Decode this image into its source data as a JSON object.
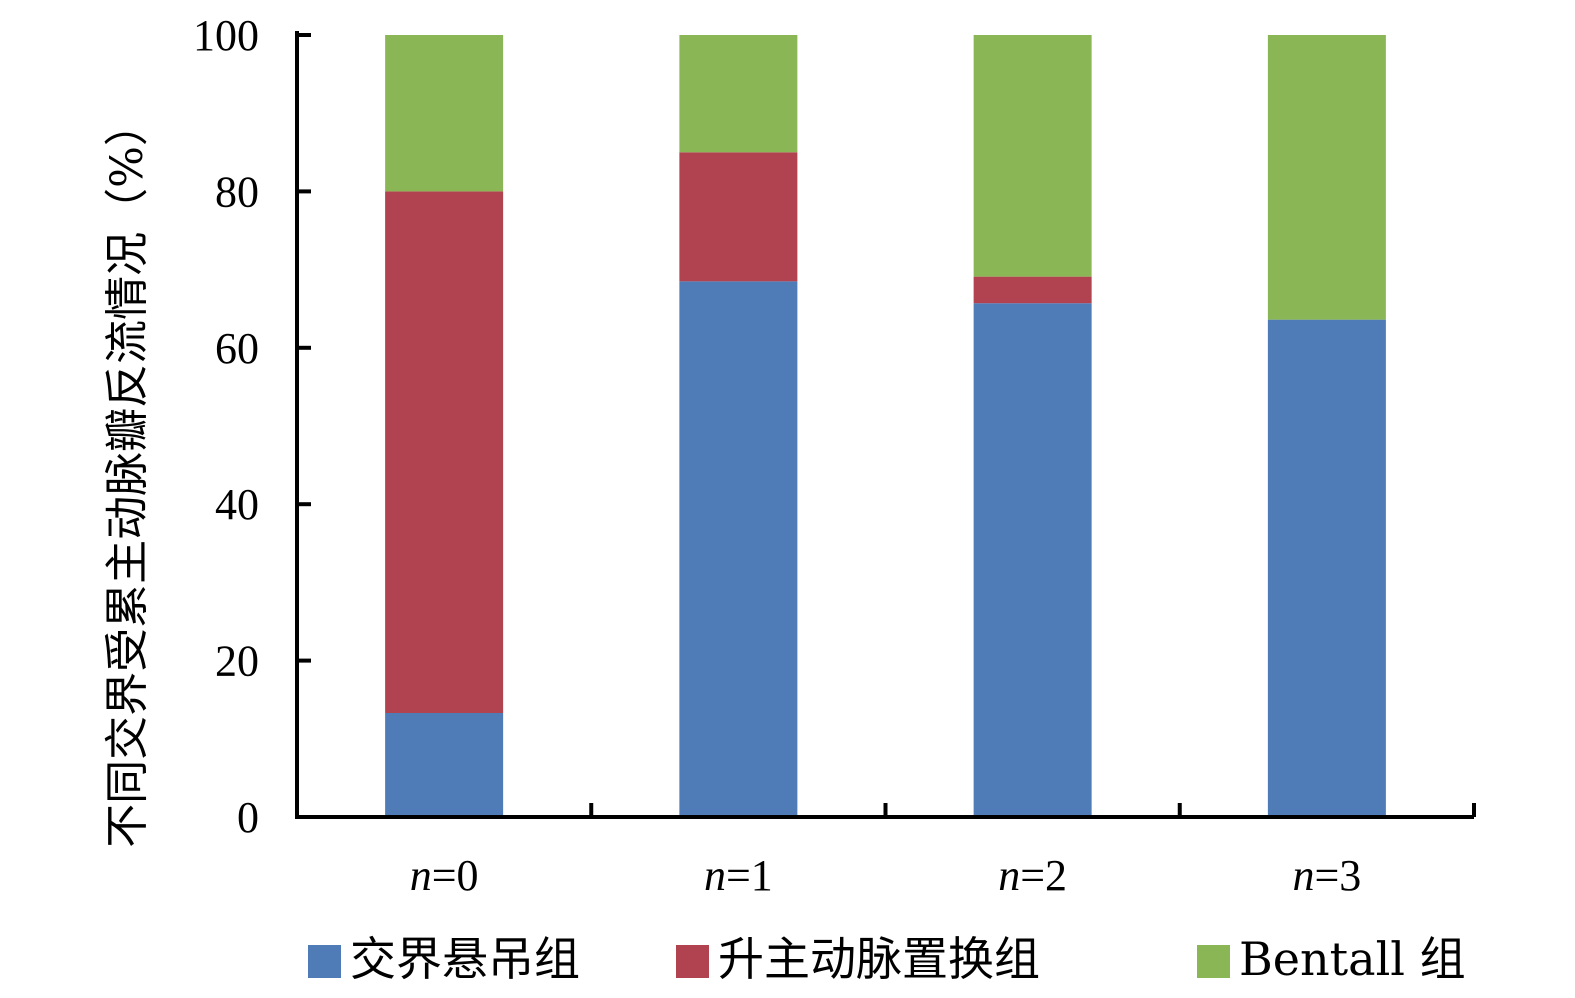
{
  "chart_data": {
    "type": "bar",
    "stacked": true,
    "categories": [
      "n=0",
      "n=1",
      "n=2",
      "n=3"
    ],
    "category_parts": [
      {
        "var": "n",
        "rest": "=0"
      },
      {
        "var": "n",
        "rest": "=1"
      },
      {
        "var": "n",
        "rest": "=2"
      },
      {
        "var": "n",
        "rest": "=3"
      }
    ],
    "series": [
      {
        "name": "交界悬吊组",
        "color": "#4f7bb7",
        "values": [
          13.3,
          68.5,
          65.7,
          63.6
        ]
      },
      {
        "name": "升主动脉置换组",
        "color": "#b14250",
        "values": [
          66.7,
          16.5,
          3.4,
          0
        ]
      },
      {
        "name": "Bentall 组",
        "color": "#8ab656",
        "values": [
          20,
          15,
          30.9,
          36.4
        ]
      }
    ],
    "ylabel": "不同交界受累主动脉瓣反流情况（%）",
    "xlabel": "",
    "ylim": [
      0,
      100
    ],
    "yticks": [
      0,
      20,
      40,
      60,
      80,
      100
    ],
    "grid": false,
    "legend_position": "bottom"
  }
}
